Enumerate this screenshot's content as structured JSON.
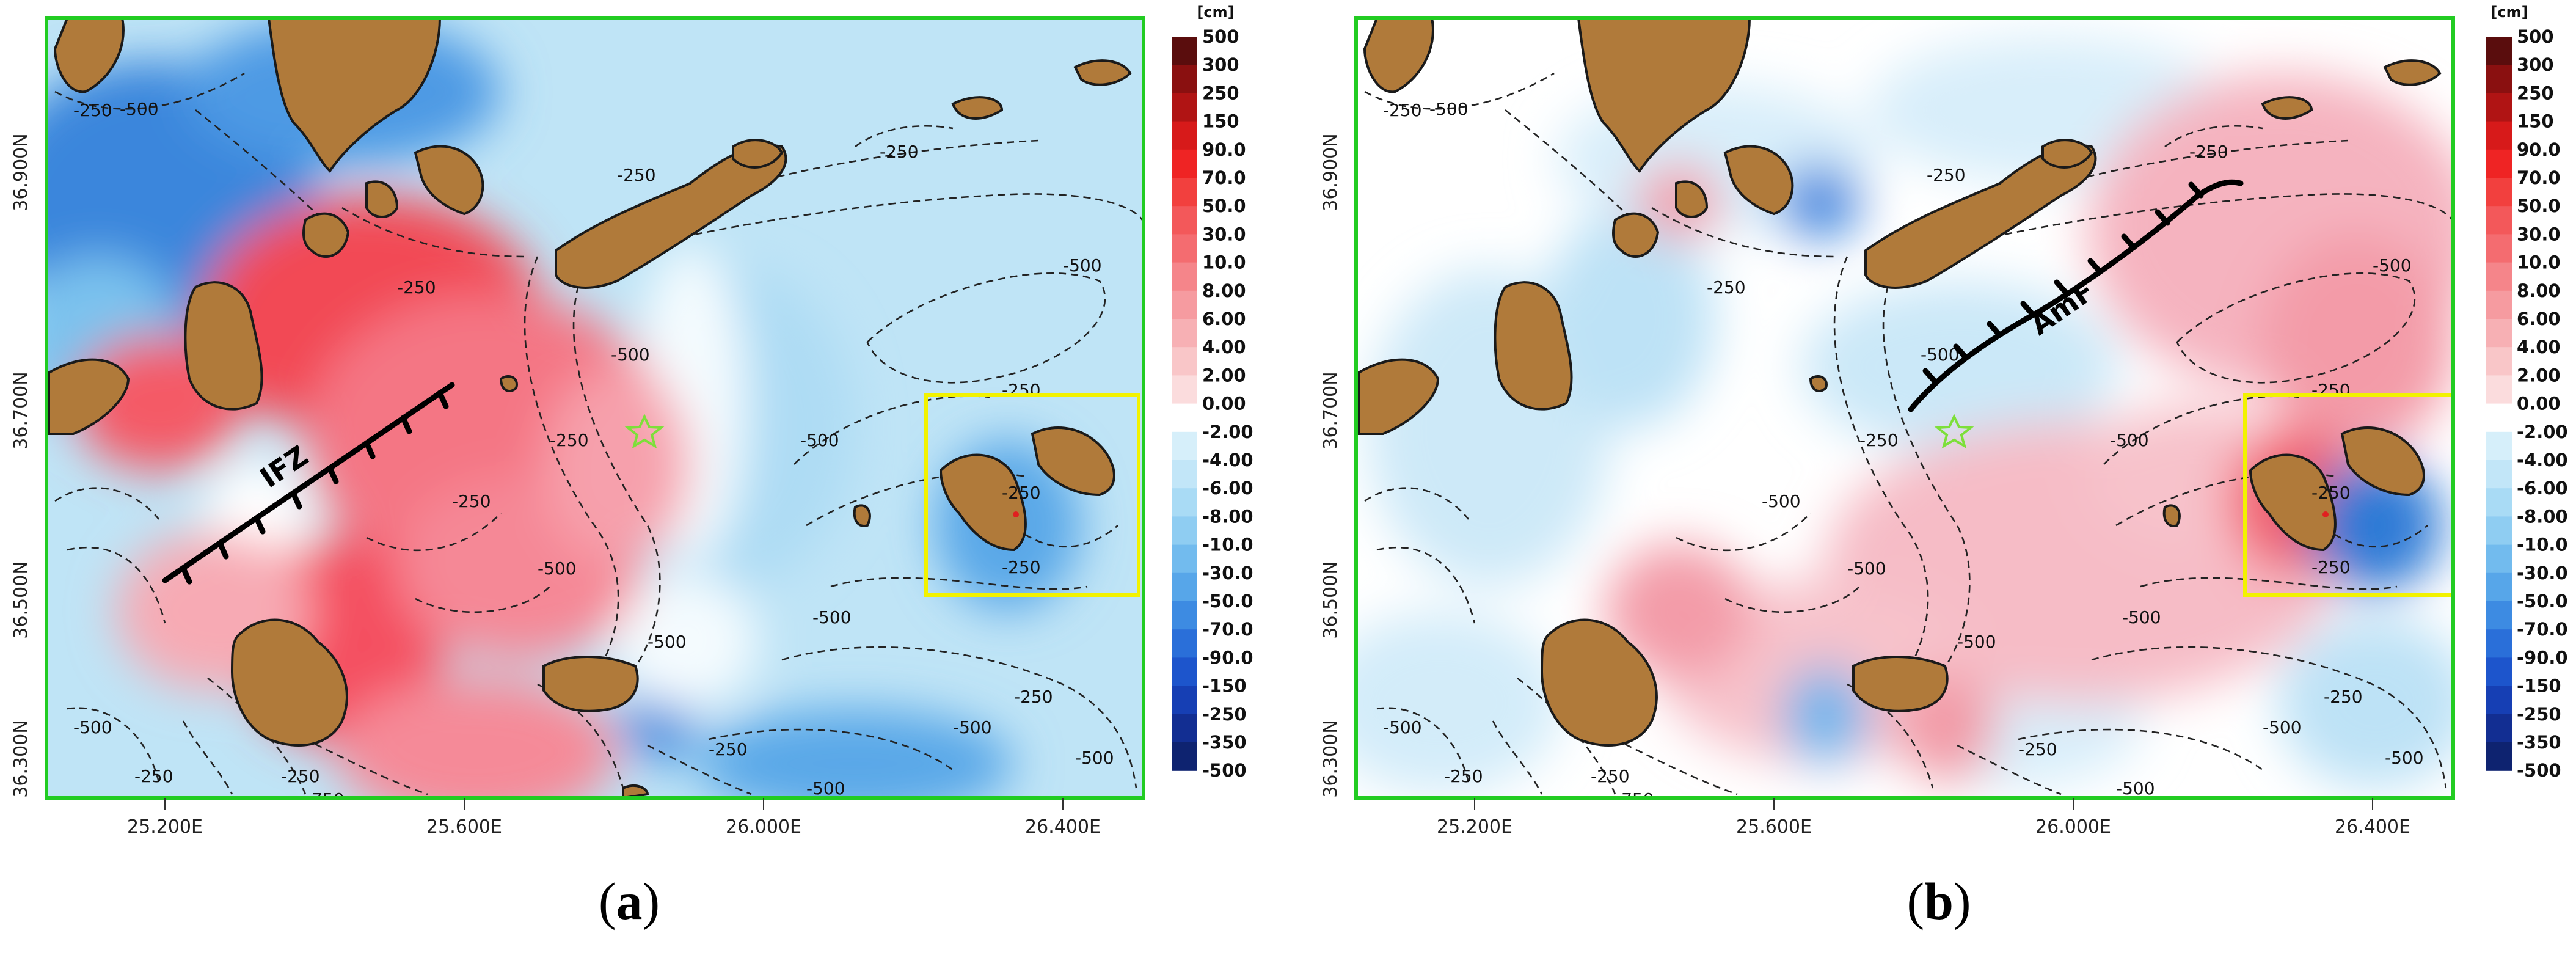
{
  "unit_label": "[cm]",
  "colorbar": {
    "labels": [
      "500",
      "300",
      "250",
      "150",
      "90.0",
      "70.0",
      "50.0",
      "30.0",
      "10.0",
      "8.00",
      "6.00",
      "4.00",
      "2.00",
      "0.00",
      "-2.00",
      "-4.00",
      "-6.00",
      "-8.00",
      "-10.0",
      "-30.0",
      "-50.0",
      "-70.0",
      "-90.0",
      "-150",
      "-250",
      "-350",
      "-500"
    ],
    "colors": [
      "#5a0d0d",
      "#8a1010",
      "#b01414",
      "#d71a1a",
      "#ef2424",
      "#f2403e",
      "#f3585a",
      "#f46c70",
      "#f5858a",
      "#f69ba0",
      "#f7b0b4",
      "#f9c6c8",
      "#fbdcdd",
      "#ffffff",
      "#d6effa",
      "#c2e6f8",
      "#a9dbf5",
      "#8fcdf2",
      "#72bbee",
      "#57a6e9",
      "#3d8be2",
      "#2a6fd9",
      "#1d55cc",
      "#163fb4",
      "#122e92",
      "#0e2370"
    ]
  },
  "axes": {
    "lon_ticks": [
      "25.200E",
      "25.600E",
      "26.000E",
      "26.400E"
    ],
    "lat_ticks": [
      "36.900N",
      "36.700N",
      "36.500N",
      "36.300N"
    ]
  },
  "panels": [
    {
      "caption": "a",
      "fault_label": "IFZ",
      "contour_labels": [
        "-250",
        "-500",
        "-250",
        "-250",
        "-500",
        "-500",
        "-250",
        "-250",
        "-500",
        "-250",
        "-500",
        "-250",
        "-500",
        "-750",
        "-500",
        "-500",
        "-250",
        "-250",
        "-500",
        "-250",
        "-250",
        "-250",
        "-250",
        "-500",
        "-500"
      ]
    },
    {
      "caption": "b",
      "fault_label": "AmF",
      "contour_labels": [
        "-250",
        "-500",
        "-250",
        "-250",
        "-500",
        "-500",
        "-250",
        "-250",
        "-500",
        "-250",
        "-500",
        "-250",
        "-500",
        "-750",
        "-500",
        "-500",
        "-250",
        "-250",
        "-500",
        "-250",
        "-250",
        "-250",
        "-500",
        "-500",
        "-500"
      ]
    }
  ],
  "colors": {
    "frame": "#22cc22",
    "inset_box": "#f2f200",
    "land": "#b07a3a",
    "epicenter_star": "#7ddf3a"
  }
}
